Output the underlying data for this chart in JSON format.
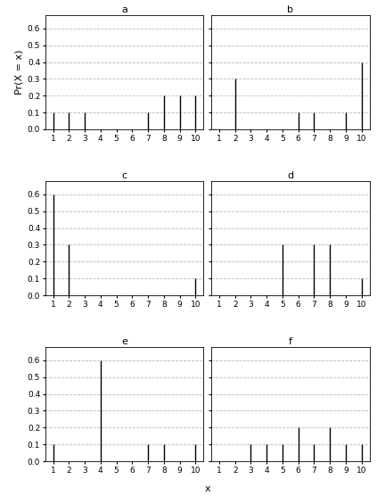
{
  "subplots": [
    {
      "label": "a",
      "x": [
        1,
        2,
        3,
        7,
        8,
        9,
        10
      ],
      "y": [
        0.1,
        0.1,
        0.1,
        0.1,
        0.2,
        0.2,
        0.2
      ]
    },
    {
      "label": "b",
      "x": [
        2,
        6,
        7,
        9,
        10
      ],
      "y": [
        0.3,
        0.1,
        0.1,
        0.1,
        0.4
      ]
    },
    {
      "label": "c",
      "x": [
        1,
        2,
        10
      ],
      "y": [
        0.6,
        0.3,
        0.1
      ]
    },
    {
      "label": "d",
      "x": [
        5,
        7,
        8,
        10
      ],
      "y": [
        0.3,
        0.3,
        0.3,
        0.1
      ]
    },
    {
      "label": "e",
      "x": [
        1,
        4,
        7,
        8,
        10
      ],
      "y": [
        0.1,
        0.6,
        0.1,
        0.1,
        0.1
      ]
    },
    {
      "label": "f",
      "x": [
        3,
        4,
        5,
        6,
        7,
        8,
        9,
        10
      ],
      "y": [
        0.1,
        0.1,
        0.1,
        0.2,
        0.1,
        0.2,
        0.1,
        0.1
      ]
    }
  ],
  "ylim": [
    0.0,
    0.68
  ],
  "yticks": [
    0.0,
    0.1,
    0.2,
    0.3,
    0.4,
    0.5,
    0.6
  ],
  "xticks": [
    1,
    2,
    3,
    4,
    5,
    6,
    7,
    8,
    9,
    10
  ],
  "ylabel": "Pr(X = x)",
  "xlabel": "x",
  "line_color": "black",
  "line_width": 1.0,
  "grid_color": "#bbbbbb",
  "bg_color": "white",
  "title_fontsize": 8,
  "label_fontsize": 8,
  "tick_fontsize": 6.5
}
